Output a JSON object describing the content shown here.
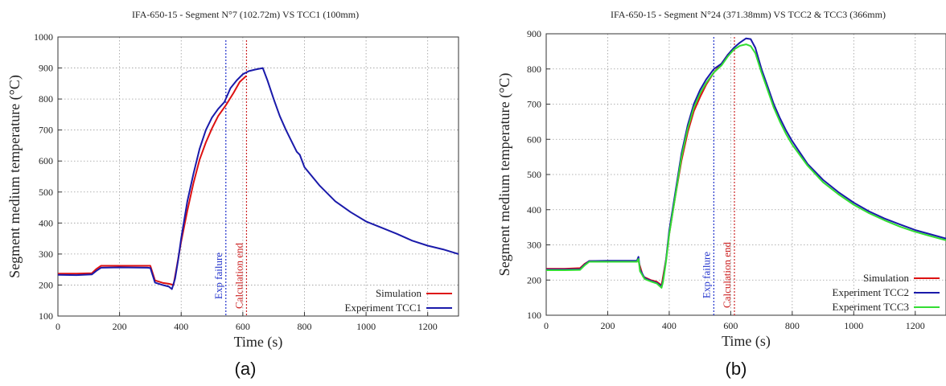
{
  "chart_data": [
    {
      "type": "line",
      "panel_label": "(a)",
      "title": "IFA-650-15 - Segment N°7 (102.72m) VS TCC1 (100mm)",
      "xlabel": "Time (s)",
      "ylabel": "Segment medium temperature (°C)",
      "xlim": [
        0,
        1300
      ],
      "ylim": [
        100,
        1000
      ],
      "xticks": [
        0,
        200,
        400,
        600,
        800,
        1000,
        1200
      ],
      "yticks": [
        100,
        200,
        300,
        400,
        500,
        600,
        700,
        800,
        900,
        1000
      ],
      "grid": true,
      "legend_position": "bottom-right",
      "markers": [
        {
          "label": "Exp failure",
          "x": 545,
          "color": "#2233cc"
        },
        {
          "label": "Calculation end",
          "x": 612,
          "color": "#cc2222"
        }
      ],
      "series": [
        {
          "name": "Simulation",
          "color": "#dd1111",
          "points": [
            [
              0,
              237
            ],
            [
              60,
              237
            ],
            [
              110,
              238
            ],
            [
              125,
              252
            ],
            [
              140,
              262
            ],
            [
              200,
              262
            ],
            [
              290,
              262
            ],
            [
              300,
              262
            ],
            [
              315,
              215
            ],
            [
              340,
              207
            ],
            [
              360,
              204
            ],
            [
              375,
              200
            ],
            [
              385,
              255
            ],
            [
              400,
              340
            ],
            [
              420,
              440
            ],
            [
              440,
              530
            ],
            [
              460,
              605
            ],
            [
              480,
              660
            ],
            [
              500,
              705
            ],
            [
              520,
              745
            ],
            [
              545,
              780
            ],
            [
              570,
              820
            ],
            [
              590,
              855
            ],
            [
              612,
              875
            ]
          ]
        },
        {
          "name": "Experiment TCC1",
          "color": "#1a1aaa",
          "points": [
            [
              0,
              233
            ],
            [
              60,
              232
            ],
            [
              110,
              234
            ],
            [
              125,
              246
            ],
            [
              140,
              256
            ],
            [
              200,
              257
            ],
            [
              290,
              256
            ],
            [
              300,
              255
            ],
            [
              315,
              208
            ],
            [
              340,
              200
            ],
            [
              360,
              195
            ],
            [
              370,
              187
            ],
            [
              380,
              220
            ],
            [
              390,
              280
            ],
            [
              400,
              350
            ],
            [
              420,
              470
            ],
            [
              440,
              560
            ],
            [
              460,
              640
            ],
            [
              480,
              700
            ],
            [
              500,
              740
            ],
            [
              520,
              768
            ],
            [
              540,
              790
            ],
            [
              560,
              835
            ],
            [
              580,
              860
            ],
            [
              600,
              880
            ],
            [
              620,
              890
            ],
            [
              640,
              895
            ],
            [
              665,
              900
            ],
            [
              680,
              860
            ],
            [
              700,
              800
            ],
            [
              720,
              745
            ],
            [
              740,
              700
            ],
            [
              760,
              660
            ],
            [
              775,
              630
            ],
            [
              785,
              620
            ],
            [
              800,
              580
            ],
            [
              850,
              520
            ],
            [
              900,
              470
            ],
            [
              950,
              435
            ],
            [
              1000,
              405
            ],
            [
              1050,
              385
            ],
            [
              1100,
              365
            ],
            [
              1150,
              343
            ],
            [
              1200,
              327
            ],
            [
              1250,
              315
            ],
            [
              1300,
              300
            ]
          ]
        }
      ]
    },
    {
      "type": "line",
      "panel_label": "(b)",
      "title": "IFA-650-15 - Segment N°24 (371.38mm) VS TCC2 & TCC3 (366mm)",
      "xlabel": "Time (s)",
      "ylabel": "Segment medium temperature (°C)",
      "xlim": [
        0,
        1300
      ],
      "ylim": [
        100,
        900
      ],
      "xticks": [
        0,
        200,
        400,
        600,
        800,
        1000,
        1200
      ],
      "yticks": [
        100,
        200,
        300,
        400,
        500,
        600,
        700,
        800,
        900
      ],
      "grid": true,
      "legend_position": "bottom-right",
      "markers": [
        {
          "label": "Exp failure",
          "x": 545,
          "color": "#2233cc"
        },
        {
          "label": "Calculation end",
          "x": 612,
          "color": "#cc2222"
        }
      ],
      "series": [
        {
          "name": "Simulation",
          "color": "#dd1111",
          "points": [
            [
              0,
              232
            ],
            [
              60,
              232
            ],
            [
              110,
              234
            ],
            [
              125,
              246
            ],
            [
              140,
              254
            ],
            [
              200,
              254
            ],
            [
              290,
              254
            ],
            [
              300,
              254
            ],
            [
              315,
              210
            ],
            [
              340,
              200
            ],
            [
              360,
              195
            ],
            [
              375,
              185
            ],
            [
              390,
              260
            ],
            [
              400,
              330
            ],
            [
              420,
              440
            ],
            [
              440,
              540
            ],
            [
              460,
              620
            ],
            [
              480,
              680
            ],
            [
              500,
              720
            ],
            [
              520,
              755
            ],
            [
              545,
              790
            ],
            [
              570,
              815
            ],
            [
              590,
              840
            ],
            [
              612,
              860
            ]
          ]
        },
        {
          "name": "Experiment TCC2",
          "color": "#1a1aaa",
          "points": [
            [
              0,
              230
            ],
            [
              60,
              230
            ],
            [
              110,
              231
            ],
            [
              125,
              244
            ],
            [
              140,
              254
            ],
            [
              200,
              255
            ],
            [
              295,
              255
            ],
            [
              300,
              266
            ],
            [
              305,
              230
            ],
            [
              320,
              206
            ],
            [
              340,
              198
            ],
            [
              360,
              192
            ],
            [
              375,
              182
            ],
            [
              380,
              200
            ],
            [
              390,
              260
            ],
            [
              400,
              340
            ],
            [
              420,
              450
            ],
            [
              440,
              560
            ],
            [
              460,
              640
            ],
            [
              480,
              700
            ],
            [
              500,
              740
            ],
            [
              520,
              770
            ],
            [
              545,
              800
            ],
            [
              570,
              815
            ],
            [
              590,
              840
            ],
            [
              610,
              860
            ],
            [
              630,
              875
            ],
            [
              650,
              887
            ],
            [
              665,
              885
            ],
            [
              680,
              860
            ],
            [
              700,
              800
            ],
            [
              720,
              750
            ],
            [
              740,
              700
            ],
            [
              760,
              660
            ],
            [
              780,
              625
            ],
            [
              790,
              610
            ],
            [
              800,
              595
            ],
            [
              850,
              530
            ],
            [
              900,
              485
            ],
            [
              950,
              450
            ],
            [
              1000,
              420
            ],
            [
              1050,
              395
            ],
            [
              1100,
              375
            ],
            [
              1150,
              358
            ],
            [
              1200,
              342
            ],
            [
              1250,
              330
            ],
            [
              1300,
              318
            ]
          ]
        },
        {
          "name": "Experiment TCC3",
          "color": "#33dd33",
          "points": [
            [
              0,
              228
            ],
            [
              60,
              228
            ],
            [
              110,
              229
            ],
            [
              125,
              242
            ],
            [
              140,
              252
            ],
            [
              200,
              252
            ],
            [
              295,
              252
            ],
            [
              300,
              260
            ],
            [
              305,
              225
            ],
            [
              320,
              203
            ],
            [
              340,
              196
            ],
            [
              360,
              190
            ],
            [
              375,
              178
            ],
            [
              380,
              195
            ],
            [
              390,
              255
            ],
            [
              400,
              330
            ],
            [
              420,
              440
            ],
            [
              440,
              550
            ],
            [
              460,
              630
            ],
            [
              480,
              690
            ],
            [
              500,
              730
            ],
            [
              520,
              760
            ],
            [
              545,
              790
            ],
            [
              570,
              810
            ],
            [
              590,
              835
            ],
            [
              610,
              855
            ],
            [
              630,
              866
            ],
            [
              650,
              870
            ],
            [
              665,
              865
            ],
            [
              680,
              845
            ],
            [
              700,
              790
            ],
            [
              720,
              740
            ],
            [
              740,
              690
            ],
            [
              760,
              650
            ],
            [
              780,
              615
            ],
            [
              800,
              585
            ],
            [
              850,
              525
            ],
            [
              900,
              478
            ],
            [
              950,
              444
            ],
            [
              1000,
              414
            ],
            [
              1050,
              390
            ],
            [
              1100,
              370
            ],
            [
              1150,
              352
            ],
            [
              1200,
              337
            ],
            [
              1250,
              325
            ],
            [
              1300,
              313
            ]
          ]
        }
      ]
    }
  ]
}
